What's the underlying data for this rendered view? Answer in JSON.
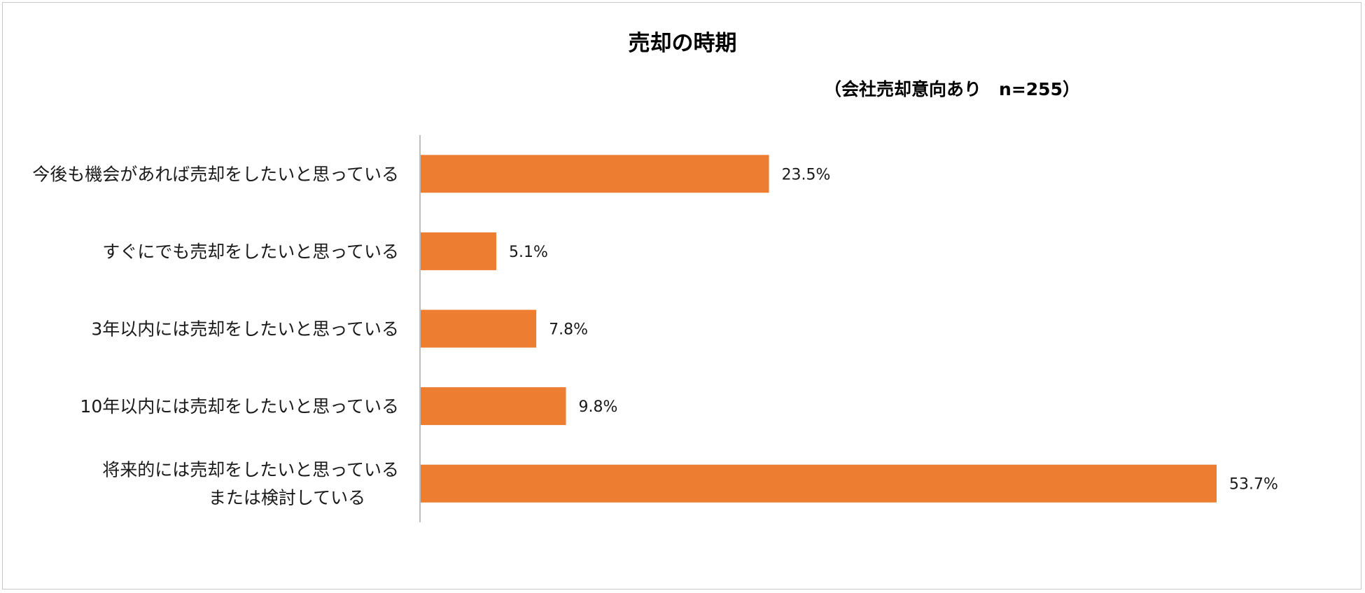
{
  "chart_data": {
    "type": "bar",
    "orientation": "horizontal",
    "title": "売却の時期",
    "subtitle": "（会社売却意向あり　n=255）",
    "categories": [
      [
        "今後も機会があれば売却をしたいと思っている"
      ],
      [
        "すぐにでも売却をしたいと思っている"
      ],
      [
        "3年以内には売却をしたいと思っている"
      ],
      [
        "10年以内には売却をしたいと思っている"
      ],
      [
        "将来的には売却をしたいと思っている",
        "または検討している"
      ]
    ],
    "values": [
      23.5,
      5.1,
      7.8,
      9.8,
      53.7
    ],
    "data_labels": [
      "23.5%",
      "5.1%",
      "7.8%",
      "9.8%",
      "53.7%"
    ],
    "unit": "%",
    "xlim": [
      0,
      60
    ],
    "grid": false,
    "legend": "none",
    "bar_color": "#ED7D31"
  }
}
